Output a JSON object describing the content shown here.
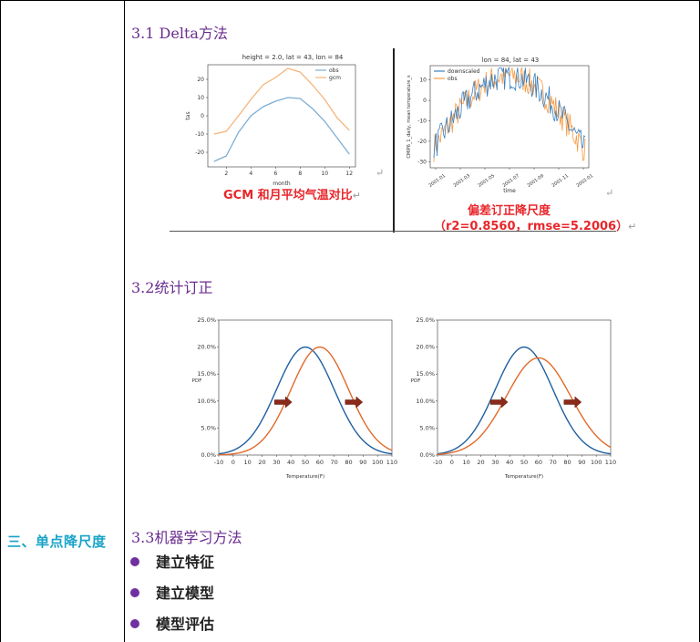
{
  "left_label": "三、单点降尺度",
  "sections": {
    "s31": "3.1 Delta方法",
    "s32": "3.2统计订正",
    "s33": "3.3机器学习方法"
  },
  "bullets": [
    "建立特征",
    "建立模型",
    "模型评估"
  ],
  "chart1": {
    "title": "height = 2.0, lat = 43, lon = 84",
    "xlabel": "month",
    "ylabel": "tas",
    "legend": [
      "obs",
      "gcm"
    ],
    "caption": "GCM 和月平均气温对比"
  },
  "chart2": {
    "title": "lon = 84, lat = 43",
    "xlabel": "time",
    "ylabel": "CMIP6_1_daily, mean temperature_s",
    "legend": [
      "downscaled",
      "obs"
    ],
    "caption1": "偏差订正降尺度",
    "caption2": "（r2=0.8560，rmse=5.2006）"
  },
  "chart_data": [
    {
      "type": "line",
      "title": "height = 2.0, lat = 43, lon = 84",
      "xlabel": "month",
      "ylabel": "tas",
      "x": [
        1,
        2,
        3,
        4,
        5,
        6,
        7,
        8,
        9,
        10,
        11,
        12
      ],
      "xlim": [
        0.5,
        12.5
      ],
      "ylim": [
        -28,
        28
      ],
      "yticks": [
        -20,
        -10,
        0,
        10,
        20
      ],
      "xticks": [
        2,
        4,
        6,
        8,
        10,
        12
      ],
      "series": [
        {
          "name": "obs",
          "color": "#7eaed3",
          "values": [
            -25,
            -22,
            -9,
            0,
            5,
            8,
            10,
            9.5,
            4,
            -3,
            -12,
            -21
          ]
        },
        {
          "name": "gcm",
          "color": "#f5b47a",
          "values": [
            -10,
            -8.5,
            0,
            9,
            17,
            21,
            26,
            24,
            17,
            9,
            -1,
            -8
          ]
        }
      ]
    },
    {
      "type": "line",
      "title": "lon = 84, lat = 43",
      "xlabel": "time",
      "ylabel": "CMIP6_1_daily, mean temperature_s",
      "xticks": [
        "2001-01",
        "2001-03",
        "2001-05",
        "2001-07",
        "2001-09",
        "2001-11",
        "2002-01"
      ],
      "yticks": [
        -30,
        -20,
        -10,
        0,
        10
      ],
      "ylim": [
        -33,
        17
      ],
      "series": [
        {
          "name": "downscaled",
          "color": "#3a7fc1"
        },
        {
          "name": "obs",
          "color": "#f79a40"
        }
      ]
    },
    {
      "type": "line",
      "xlabel": "Temperature(F)",
      "ylabel": "PDF",
      "xticks": [
        -10,
        0,
        10,
        20,
        30,
        40,
        50,
        60,
        70,
        80,
        90,
        100,
        110
      ],
      "yticks": [
        "0.0%",
        "5.0%",
        "10.0%",
        "15.0%",
        "20.0%",
        "25.0%"
      ],
      "xlim": [
        -10,
        110
      ],
      "ylim": [
        0,
        25
      ],
      "series": [
        {
          "color": "#1f5fa0",
          "mean": 50,
          "peak": 20.0
        },
        {
          "color": "#e06a2a",
          "mean": 60,
          "peak": 20.0
        }
      ],
      "arrows": [
        {
          "x": 35,
          "y": 9.8
        },
        {
          "x": 84,
          "y": 9.8
        }
      ]
    },
    {
      "type": "line",
      "xlabel": "Temperature(F)",
      "ylabel": "PDF",
      "xticks": [
        -10,
        0,
        10,
        20,
        30,
        40,
        50,
        60,
        70,
        80,
        90,
        100,
        110
      ],
      "yticks": [
        "0.0%",
        "5.0%",
        "10.0%",
        "15.0%",
        "20.0%",
        "25.0%"
      ],
      "xlim": [
        -10,
        110
      ],
      "ylim": [
        0,
        25
      ],
      "series": [
        {
          "color": "#1f5fa0",
          "mean": 50,
          "peak": 20.0
        },
        {
          "color": "#e06a2a",
          "mean": 60,
          "peak": 18.0
        }
      ],
      "arrows": [
        {
          "x": 33,
          "y": 9.8
        },
        {
          "x": 84,
          "y": 9.8
        }
      ]
    }
  ]
}
